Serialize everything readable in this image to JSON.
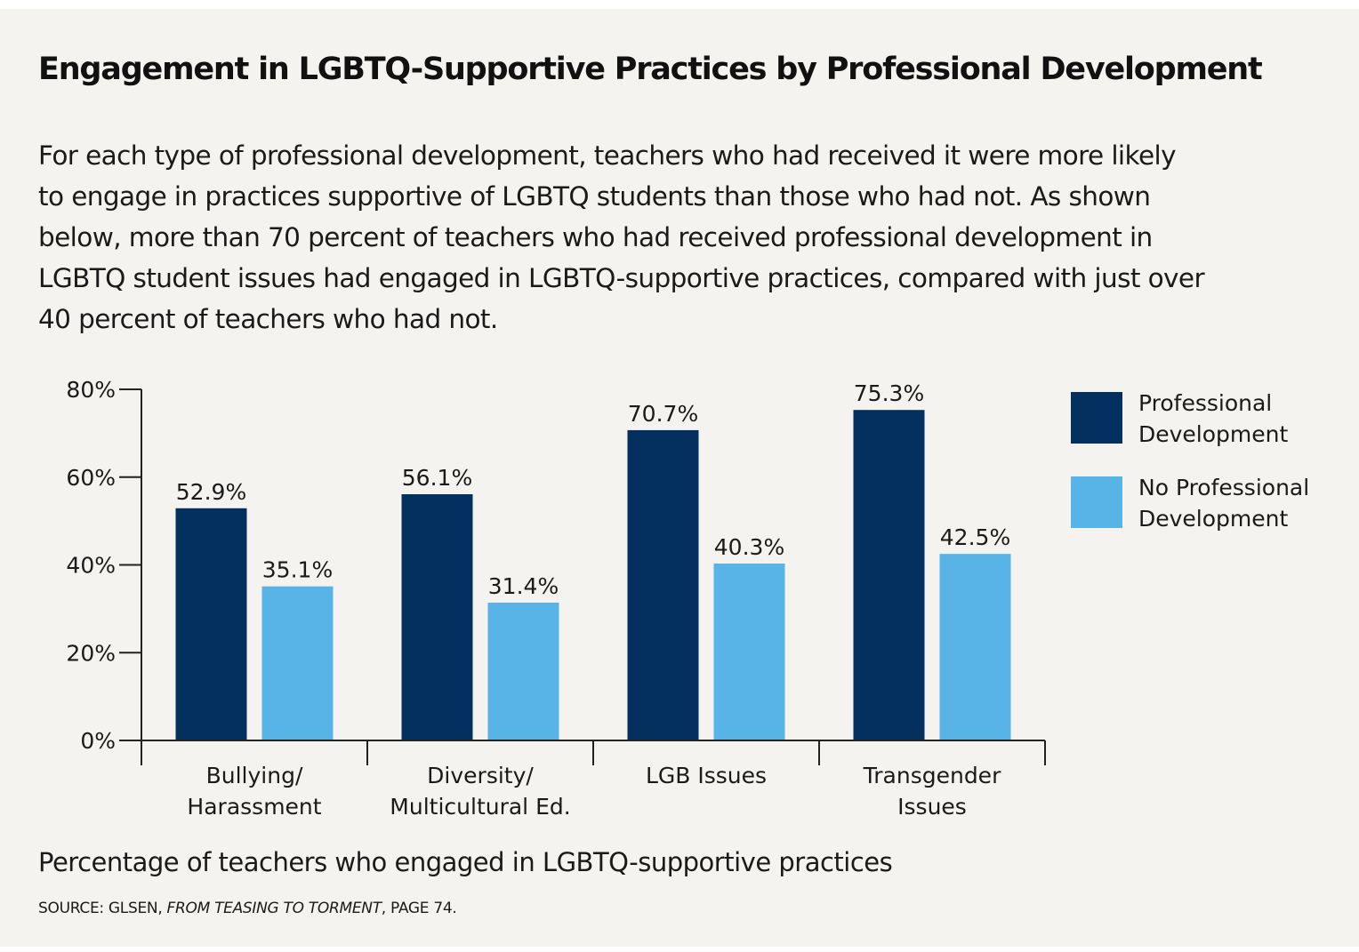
{
  "title": "Engagement in LGBTQ-Supportive Practices by Professional Development",
  "subtitle_lines": [
    "For each type of professional development, teachers who had received it were more likely",
    "to engage in practices supportive of LGBTQ students than those who had not. As shown",
    "below, more than 70 percent of teachers who had received professional development in",
    "LGBTQ student issues had engaged in LGBTQ-supportive practices, compared with just over",
    "40 percent of teachers who had not."
  ],
  "caption": "Percentage of teachers who engaged in LGBTQ-supportive practices",
  "source": {
    "prefix": "SOURCE: GLSEN, ",
    "italic": "FROM TEASING TO TORMENT",
    "suffix": ", PAGE 74."
  },
  "colors": {
    "background": "#f4f3f0",
    "professional": "#03305e",
    "no_professional": "#58b4e6",
    "axis": "#222222"
  },
  "chart_data": {
    "type": "bar",
    "categories": [
      [
        "Bullying/",
        "Harassment"
      ],
      [
        "Diversity/",
        "Multicultural Ed."
      ],
      [
        "LGB Issues"
      ],
      [
        "Transgender",
        "Issues"
      ]
    ],
    "series": [
      {
        "name": "Professional Development",
        "legend_lines": [
          "Professional",
          "Development"
        ],
        "color": "#03305e",
        "values": [
          52.9,
          56.1,
          70.7,
          75.3
        ]
      },
      {
        "name": "No Professional Development",
        "legend_lines": [
          "No Professional",
          "Development"
        ],
        "color": "#58b4e6",
        "values": [
          35.1,
          31.4,
          40.3,
          42.5
        ]
      }
    ],
    "value_suffix": "%",
    "ylim": [
      0,
      80
    ],
    "yticks": [
      0,
      20,
      40,
      60,
      80
    ],
    "ytick_labels": [
      "0%",
      "20%",
      "40%",
      "60%",
      "80%"
    ],
    "grid": false,
    "legend_position": "right"
  }
}
